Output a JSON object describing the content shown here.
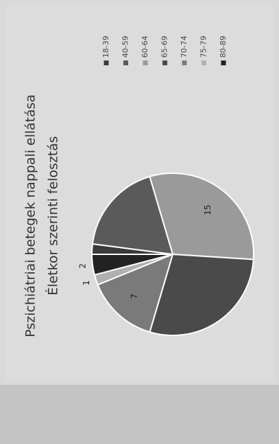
{
  "chart_data": {
    "type": "pie",
    "title": "Pszichiátriai betegek nappali ellátása",
    "subtitle": "Életkor szerinti  felosztás",
    "categories": [
      "18-39",
      "40-59",
      "60-64",
      "65-69",
      "70-74",
      "75-79",
      "80-89"
    ],
    "values": [
      1,
      9,
      15,
      14,
      7,
      1,
      2
    ],
    "value_labels": [
      null,
      null,
      "15",
      null,
      "7",
      "1",
      "2"
    ],
    "colors": [
      "#3a3a3a",
      "#5a5a5a",
      "#9a9a9a",
      "#4a4a4a",
      "#7a7a7a",
      "#b0b0b0",
      "#222222"
    ],
    "legend": "right"
  }
}
